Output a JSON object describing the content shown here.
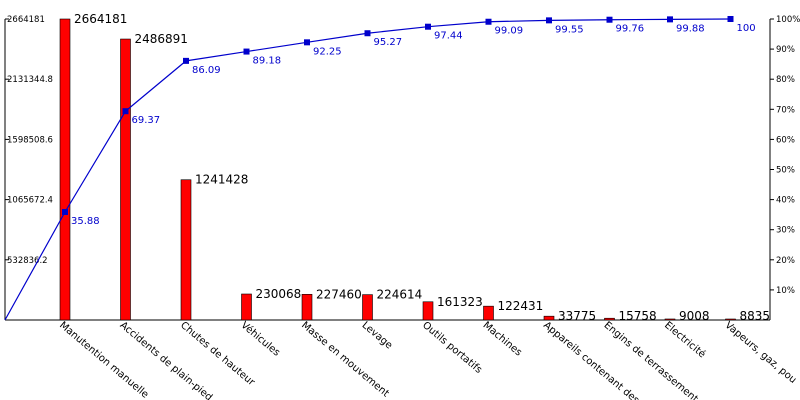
{
  "chart_data": {
    "type": "bar",
    "title": "",
    "xlabel": "",
    "ylabel": "",
    "categories": [
      "Manutention manuelle",
      "Accidents de plain-pied",
      "Chutes de hauteur",
      "Véhicules",
      "Masse en mouvement",
      "Levage",
      "Outils portatifs",
      "Machines",
      "Appareils contenant des",
      "Engins de terrassement",
      "Electricité",
      "Vapeurs, gaz, pou"
    ],
    "values": [
      2664181,
      2486891,
      1241428,
      230068,
      227460,
      224614,
      161323,
      122431,
      33775,
      15758,
      9008,
      8835
    ],
    "value_labels": [
      "2664181",
      "2486891",
      "1241428",
      "230068",
      "227460",
      "224614",
      "161323",
      "122431",
      "33775",
      "15758",
      "9008",
      "8835"
    ],
    "cumulative_percent": [
      35.88,
      69.37,
      86.09,
      89.18,
      92.25,
      95.27,
      97.44,
      99.09,
      99.55,
      99.76,
      99.88,
      100
    ],
    "cumulative_labels": [
      "35.88",
      "69.37",
      "86.09",
      "89.18",
      "92.25",
      "95.27",
      "97.44",
      "99.09",
      "99.55",
      "99.76",
      "99.88",
      "100"
    ],
    "ylim": [
      0,
      2664181
    ],
    "y_ticks": [
      "532836.2",
      "1065672.4",
      "1598508.6",
      "2131344.8",
      "2664181"
    ],
    "y2lim": [
      0,
      100
    ],
    "y2_ticks": [
      "10%",
      "20%",
      "30%",
      "40%",
      "50%",
      "60%",
      "70%",
      "80%",
      "90%",
      "100%"
    ],
    "colors": {
      "bars": "#ff0000",
      "bar_edge": "#000000",
      "line": "#0000cc"
    },
    "grid": false,
    "legend": "none"
  }
}
